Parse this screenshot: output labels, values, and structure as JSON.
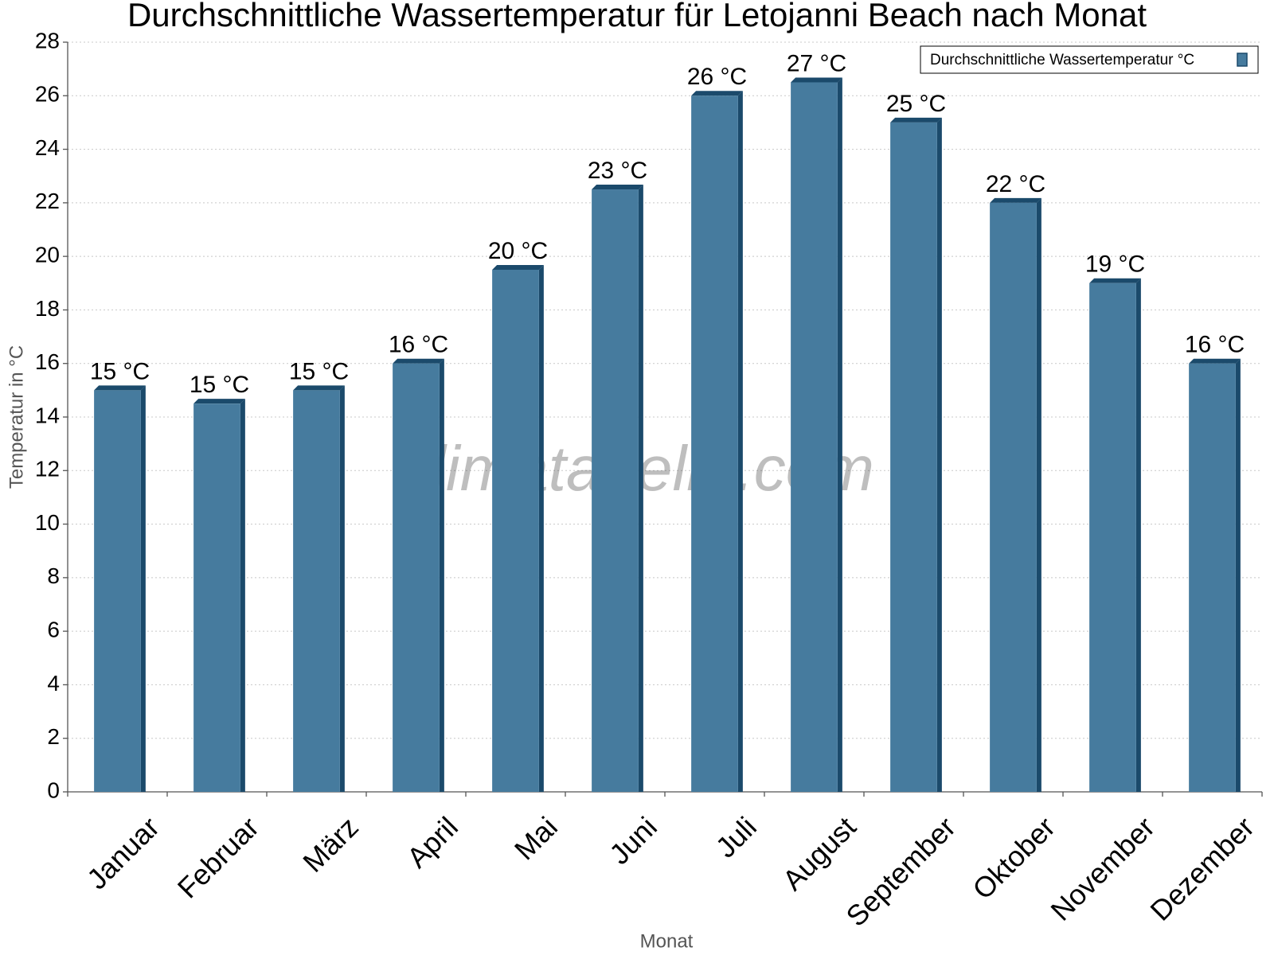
{
  "chart_data": {
    "type": "bar",
    "title": "Durchschnittliche Wassertemperatur für Letojanni Beach nach Monat",
    "x_label": "Monat",
    "y_label": "Temperatur in °C",
    "watermark": "klimatabelle.com",
    "categories": [
      "Januar",
      "Februar",
      "März",
      "April",
      "Mai",
      "Juni",
      "Juli",
      "August",
      "September",
      "Oktober",
      "November",
      "Dezember"
    ],
    "series": [
      {
        "name": "Durchschnittliche Wassertemperatur °C",
        "color": "#467b9e",
        "values": [
          15,
          14.5,
          15,
          16,
          19.5,
          22.5,
          26,
          26.5,
          25,
          22,
          19,
          16
        ],
        "value_labels": [
          "15 °C",
          "15 °C",
          "15 °C",
          "16 °C",
          "20 °C",
          "23 °C",
          "26 °C",
          "27 °C",
          "25 °C",
          "22 °C",
          "19 °C",
          "16 °C"
        ]
      }
    ],
    "ylim": [
      0,
      28
    ],
    "yticks": [
      0,
      2,
      4,
      6,
      8,
      10,
      12,
      14,
      16,
      18,
      20,
      22,
      24,
      26,
      28
    ],
    "grid": true,
    "legend": "upper-right"
  }
}
